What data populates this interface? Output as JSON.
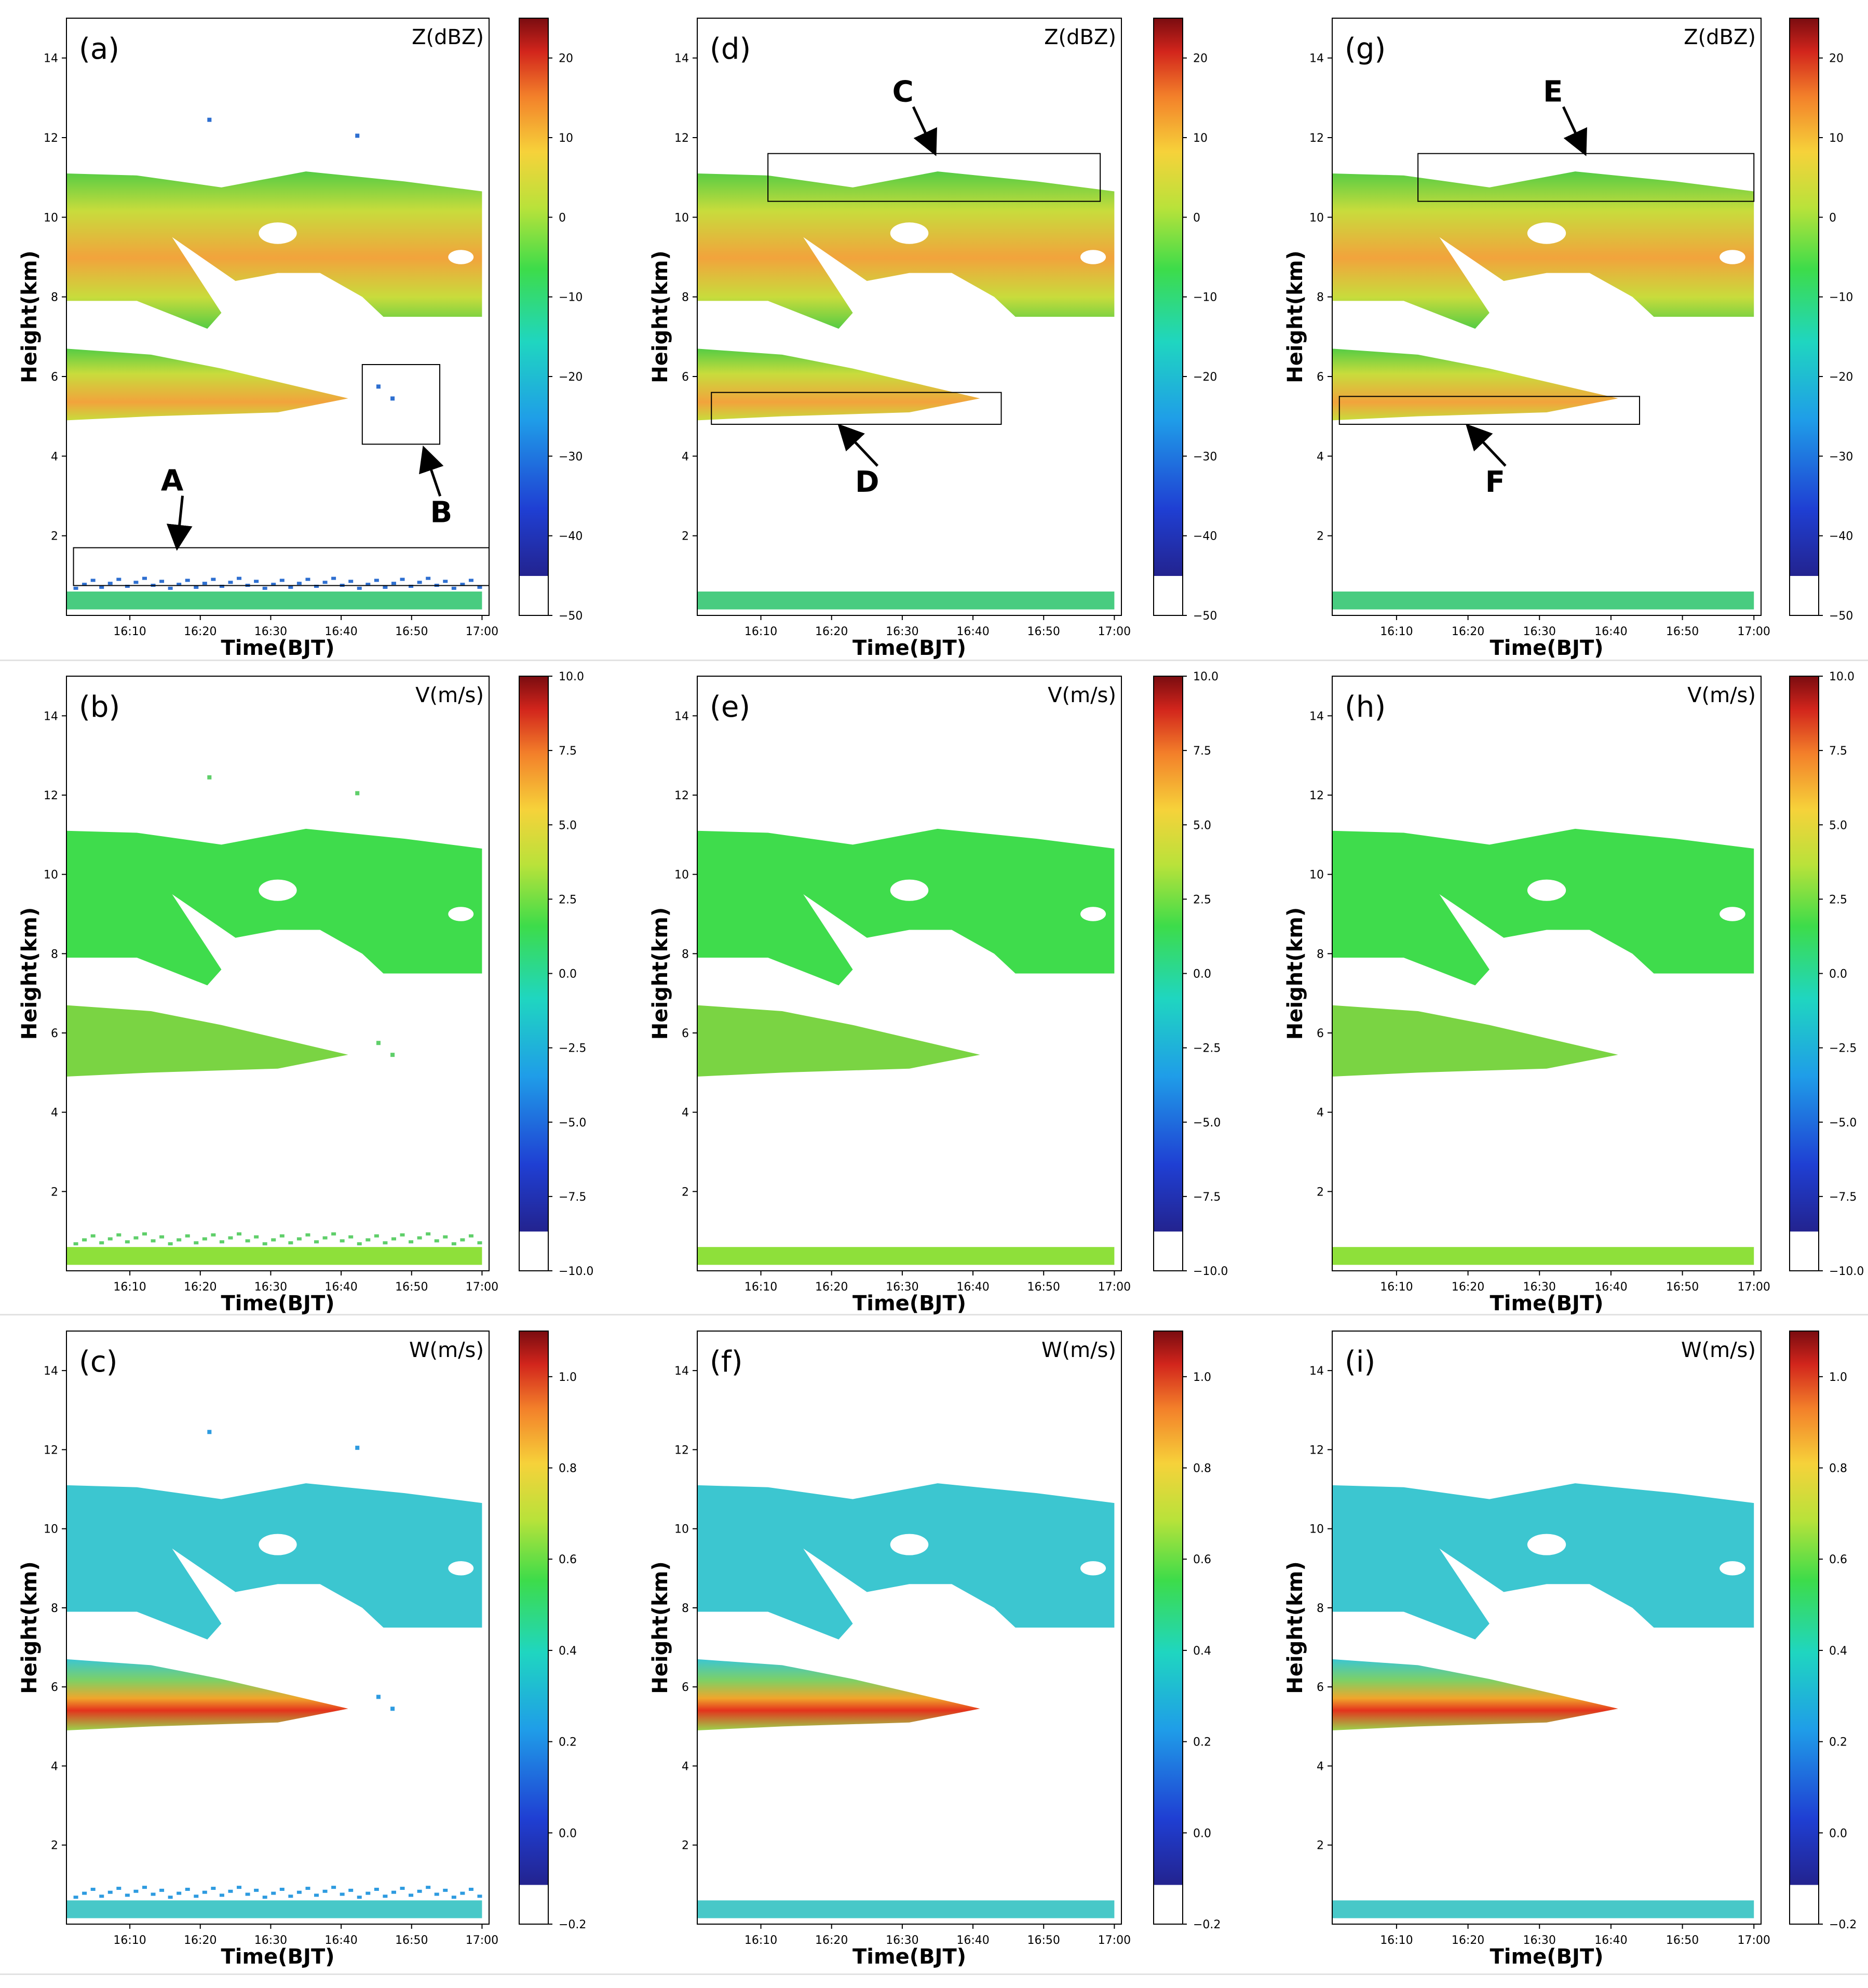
{
  "chart_data": [
    {
      "panel_label": "(a)",
      "quantity": "Z(dBZ)",
      "type": "heatmap",
      "xlabel": "Time(BJT)",
      "ylabel": "Height(km)",
      "x_ticks": [
        "16:10",
        "16:20",
        "16:30",
        "16:40",
        "16:50",
        "17:00"
      ],
      "y_ticks": [
        2,
        4,
        6,
        8,
        10,
        12,
        14
      ],
      "xlim": [
        "16:01",
        "17:01"
      ],
      "ylim": [
        0,
        15
      ],
      "colorbar": {
        "min": -50,
        "max": 25,
        "ticks": [
          20,
          10,
          0,
          -10,
          -20,
          -30,
          -40,
          -50
        ]
      },
      "variant": "raw",
      "annotations": [
        {
          "label": "A",
          "box": {
            "t0": "16:02",
            "t1": "17:01",
            "z0": 0.75,
            "z1": 1.7
          },
          "points_to": "ground clutter dots"
        },
        {
          "label": "B",
          "box": {
            "t0": "16:43",
            "t1": "16:54",
            "z0": 4.3,
            "z1": 6.3
          },
          "points_to": "isolated noise echoes"
        }
      ]
    },
    {
      "panel_label": "(b)",
      "quantity": "V(m/s)",
      "type": "heatmap",
      "xlabel": "Time(BJT)",
      "ylabel": "Height(km)",
      "x_ticks": [
        "16:10",
        "16:20",
        "16:30",
        "16:40",
        "16:50",
        "17:00"
      ],
      "y_ticks": [
        2,
        4,
        6,
        8,
        10,
        12,
        14
      ],
      "xlim": [
        "16:01",
        "17:01"
      ],
      "ylim": [
        0,
        15
      ],
      "colorbar": {
        "min": -10.0,
        "max": 10.0,
        "ticks": [
          "10.0",
          "7.5",
          "5.0",
          "2.5",
          "0.0",
          "−2.5",
          "−5.0",
          "−7.5",
          "−10.0"
        ]
      },
      "variant": "raw",
      "annotations": []
    },
    {
      "panel_label": "(c)",
      "quantity": "W(m/s)",
      "type": "heatmap",
      "xlabel": "Time(BJT)",
      "ylabel": "Height(km)",
      "x_ticks": [
        "16:10",
        "16:20",
        "16:30",
        "16:40",
        "16:50",
        "17:00"
      ],
      "y_ticks": [
        2,
        4,
        6,
        8,
        10,
        12,
        14
      ],
      "xlim": [
        "16:01",
        "17:01"
      ],
      "ylim": [
        0,
        15
      ],
      "colorbar": {
        "min": -0.2,
        "max": 1.1,
        "ticks": [
          "1.0",
          "0.8",
          "0.6",
          "0.4",
          "0.2",
          "0.0",
          "−0.2"
        ]
      },
      "variant": "raw",
      "annotations": []
    },
    {
      "panel_label": "(d)",
      "quantity": "Z(dBZ)",
      "type": "heatmap",
      "xlabel": "Time(BJT)",
      "ylabel": "Height(km)",
      "x_ticks": [
        "16:10",
        "16:20",
        "16:30",
        "16:40",
        "16:50",
        "17:00"
      ],
      "y_ticks": [
        2,
        4,
        6,
        8,
        10,
        12,
        14
      ],
      "xlim": [
        "16:01",
        "17:01"
      ],
      "ylim": [
        0,
        15
      ],
      "colorbar": {
        "min": -50,
        "max": 25,
        "ticks": [
          20,
          10,
          0,
          -10,
          -20,
          -30,
          -40,
          -50
        ]
      },
      "variant": "filtered",
      "annotations": [
        {
          "label": "C",
          "box": {
            "t0": "16:11",
            "t1": "16:58",
            "z0": 10.4,
            "z1": 11.6
          },
          "points_to": "cloud top"
        },
        {
          "label": "D",
          "box": {
            "t0": "16:03",
            "t1": "16:44",
            "z0": 4.8,
            "z1": 5.6
          },
          "points_to": "lower layer base"
        }
      ]
    },
    {
      "panel_label": "(e)",
      "quantity": "V(m/s)",
      "type": "heatmap",
      "xlabel": "Time(BJT)",
      "ylabel": "Height(km)",
      "x_ticks": [
        "16:10",
        "16:20",
        "16:30",
        "16:40",
        "16:50",
        "17:00"
      ],
      "y_ticks": [
        2,
        4,
        6,
        8,
        10,
        12,
        14
      ],
      "xlim": [
        "16:01",
        "17:01"
      ],
      "ylim": [
        0,
        15
      ],
      "colorbar": {
        "min": -10.0,
        "max": 10.0,
        "ticks": [
          "10.0",
          "7.5",
          "5.0",
          "2.5",
          "0.0",
          "−2.5",
          "−5.0",
          "−7.5",
          "−10.0"
        ]
      },
      "variant": "filtered",
      "annotations": []
    },
    {
      "panel_label": "(f)",
      "quantity": "W(m/s)",
      "type": "heatmap",
      "xlabel": "Time(BJT)",
      "ylabel": "Height(km)",
      "x_ticks": [
        "16:10",
        "16:20",
        "16:30",
        "16:40",
        "16:50",
        "17:00"
      ],
      "y_ticks": [
        2,
        4,
        6,
        8,
        10,
        12,
        14
      ],
      "xlim": [
        "16:01",
        "17:01"
      ],
      "ylim": [
        0,
        15
      ],
      "colorbar": {
        "min": -0.2,
        "max": 1.1,
        "ticks": [
          "1.0",
          "0.8",
          "0.6",
          "0.4",
          "0.2",
          "0.0",
          "−0.2"
        ]
      },
      "variant": "filtered",
      "annotations": []
    },
    {
      "panel_label": "(g)",
      "quantity": "Z(dBZ)",
      "type": "heatmap",
      "xlabel": "Time(BJT)",
      "ylabel": "Height(km)",
      "x_ticks": [
        "16:10",
        "16:20",
        "16:30",
        "16:40",
        "16:50",
        "17:00"
      ],
      "y_ticks": [
        2,
        4,
        6,
        8,
        10,
        12,
        14
      ],
      "xlim": [
        "16:01",
        "17:01"
      ],
      "ylim": [
        0,
        15
      ],
      "colorbar": {
        "min": -50,
        "max": 25,
        "ticks": [
          20,
          10,
          0,
          -10,
          -20,
          -30,
          -40,
          -50
        ]
      },
      "variant": "corrected",
      "annotations": [
        {
          "label": "E",
          "box": {
            "t0": "16:13",
            "t1": "17:00",
            "z0": 10.4,
            "z1": 11.6
          },
          "points_to": "cloud top"
        },
        {
          "label": "F",
          "box": {
            "t0": "16:02",
            "t1": "16:44",
            "z0": 4.8,
            "z1": 5.5
          },
          "points_to": "lower layer base"
        }
      ]
    },
    {
      "panel_label": "(h)",
      "quantity": "V(m/s)",
      "type": "heatmap",
      "xlabel": "Time(BJT)",
      "ylabel": "Height(km)",
      "x_ticks": [
        "16:10",
        "16:20",
        "16:30",
        "16:40",
        "16:50",
        "17:00"
      ],
      "y_ticks": [
        2,
        4,
        6,
        8,
        10,
        12,
        14
      ],
      "xlim": [
        "16:01",
        "17:01"
      ],
      "ylim": [
        0,
        15
      ],
      "colorbar": {
        "min": -10.0,
        "max": 10.0,
        "ticks": [
          "10.0",
          "7.5",
          "5.0",
          "2.5",
          "0.0",
          "−2.5",
          "−5.0",
          "−7.5",
          "−10.0"
        ]
      },
      "variant": "corrected",
      "annotations": []
    },
    {
      "panel_label": "(i)",
      "quantity": "W(m/s)",
      "type": "heatmap",
      "xlabel": "Time(BJT)",
      "ylabel": "Height(km)",
      "x_ticks": [
        "16:10",
        "16:20",
        "16:30",
        "16:40",
        "16:50",
        "17:00"
      ],
      "y_ticks": [
        2,
        4,
        6,
        8,
        10,
        12,
        14
      ],
      "xlim": [
        "16:01",
        "17:01"
      ],
      "ylim": [
        0,
        15
      ],
      "colorbar": {
        "min": -0.2,
        "max": 1.1,
        "ticks": [
          "1.0",
          "0.8",
          "0.6",
          "0.4",
          "0.2",
          "0.0",
          "−0.2"
        ]
      },
      "variant": "corrected",
      "annotations": []
    }
  ],
  "layers": {
    "upper_cloud": {
      "t_range": [
        "16:01",
        "17:00"
      ],
      "z_bottom_start": 7.9,
      "z_bottom_end": 7.5,
      "z_top": 11.2
    },
    "lower_cloud": {
      "t_range": [
        "16:01",
        "16:41"
      ],
      "z_range": [
        4.9,
        6.7
      ]
    },
    "surface_layer": {
      "t_range": [
        "16:01",
        "17:00"
      ],
      "z_range": [
        0.15,
        0.6
      ]
    }
  },
  "colors": {
    "Z_core": "#f2a33c",
    "Z_mid": "#c8dc3c",
    "Z_edge": "#55cc44",
    "Z_surface": "#48cc80",
    "Z_clutter": "#2e6fd0",
    "V_body": "#3fdc4c",
    "V_lower": "#7ad443",
    "V_surface": "#8ee03a",
    "W_body": "#3cc6d0",
    "W_lower_hot": "#e4331c",
    "W_lower_warm": "#f0a62c",
    "W_surface": "#48c8c8",
    "W_noise": "#2e9be0",
    "frame": "#000000",
    "separator": "#e2e2e2"
  }
}
